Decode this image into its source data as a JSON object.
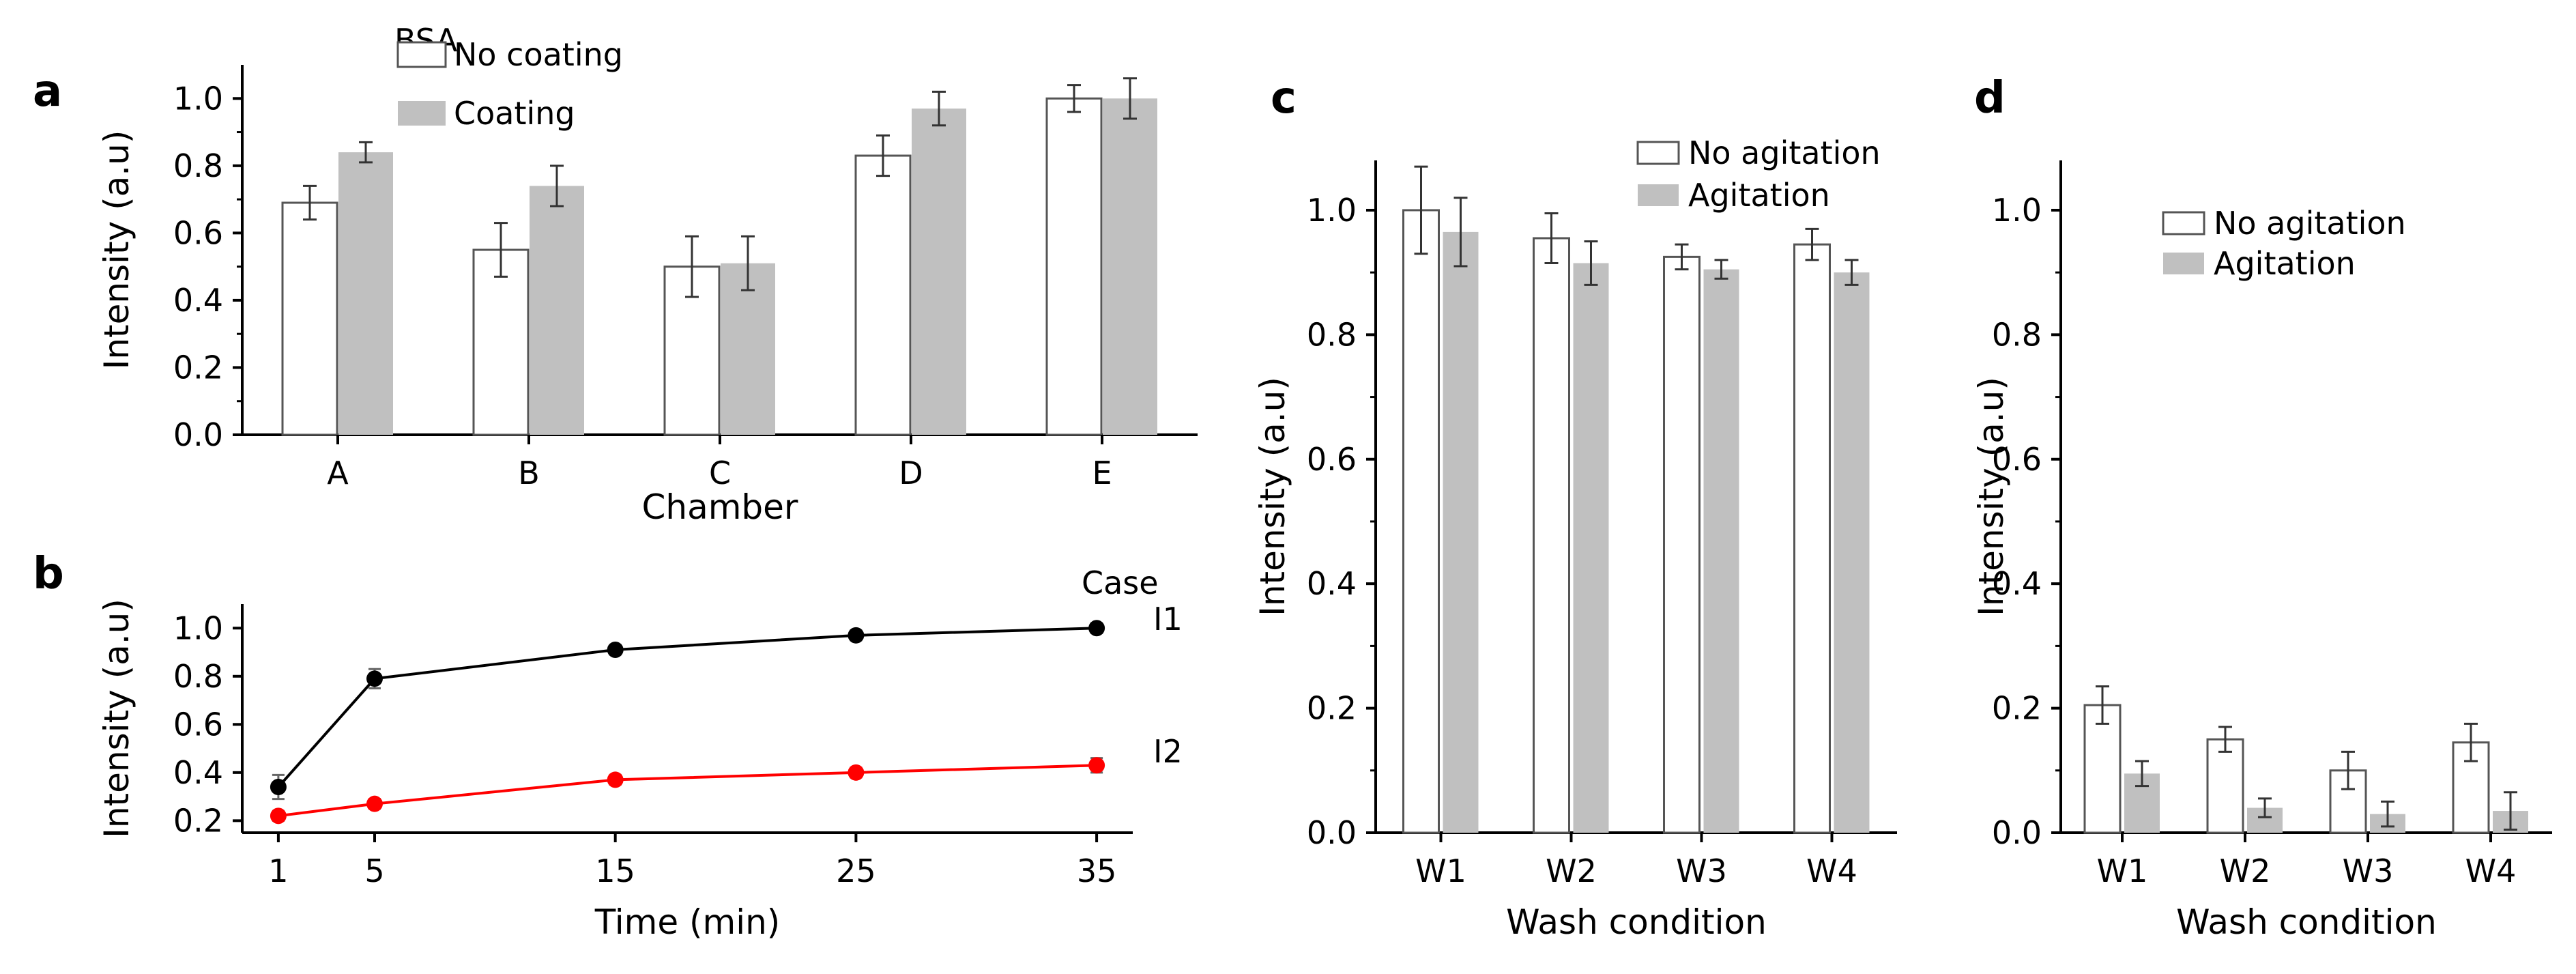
{
  "panel_labels": [
    "a",
    "b",
    "c",
    "d"
  ],
  "chart_data": [
    {
      "id": "a",
      "type": "bar",
      "title": "",
      "xlabel": "Chamber",
      "ylabel": "Intensity (a.u)",
      "ylim": [
        0,
        1.1
      ],
      "yticks": [
        "0.0",
        "0.2",
        "0.4",
        "0.6",
        "0.8",
        "1.0"
      ],
      "categories": [
        "A",
        "B",
        "C",
        "D",
        "E"
      ],
      "legend_title": "BSA",
      "series": [
        {
          "name": "No coating",
          "fill": "#ffffff",
          "values": [
            0.69,
            0.55,
            0.5,
            0.83,
            1.0
          ],
          "errors": [
            0.05,
            0.08,
            0.09,
            0.06,
            0.04
          ]
        },
        {
          "name": "Coating",
          "fill": "#c0c0c0",
          "values": [
            0.84,
            0.74,
            0.51,
            0.97,
            1.0
          ],
          "errors": [
            0.03,
            0.06,
            0.08,
            0.05,
            0.06
          ]
        }
      ]
    },
    {
      "id": "b",
      "type": "line",
      "title": "",
      "xlabel": "Time (min)",
      "ylabel": "Intensity (a.u)",
      "ylim": [
        0.15,
        1.1
      ],
      "yticks": [
        "0.2",
        "0.4",
        "0.6",
        "0.8",
        "1.0"
      ],
      "x": [
        "1",
        "5",
        "15",
        "25",
        "35"
      ],
      "legend_title": "Case",
      "series": [
        {
          "name": "I1",
          "color": "#000000",
          "values": [
            0.34,
            0.79,
            0.91,
            0.97,
            1.0
          ],
          "errors": [
            0.05,
            0.04,
            0.02,
            0.02,
            0.02
          ]
        },
        {
          "name": "I2",
          "color": "#ff0000",
          "values": [
            0.22,
            0.27,
            0.37,
            0.4,
            0.43
          ],
          "errors": [
            0.02,
            0.02,
            0.02,
            0.02,
            0.03
          ]
        }
      ]
    },
    {
      "id": "c",
      "type": "bar",
      "title": "",
      "xlabel": "Wash condition",
      "ylabel": "Intensity (a.u)",
      "ylim": [
        0,
        1.08
      ],
      "yticks": [
        "0.0",
        "0.2",
        "0.4",
        "0.6",
        "0.8",
        "1.0"
      ],
      "categories": [
        "W1",
        "W2",
        "W3",
        "W4"
      ],
      "series": [
        {
          "name": "No agitation",
          "fill": "#ffffff",
          "values": [
            1.0,
            0.955,
            0.925,
            0.945
          ],
          "errors": [
            0.07,
            0.04,
            0.02,
            0.025
          ]
        },
        {
          "name": "Agitation",
          "fill": "#c0c0c0",
          "values": [
            0.965,
            0.915,
            0.905,
            0.9
          ],
          "errors": [
            0.055,
            0.035,
            0.015,
            0.02
          ]
        }
      ]
    },
    {
      "id": "d",
      "type": "bar",
      "title": "",
      "xlabel": "Wash condition",
      "ylabel": "Intensity (a.u)",
      "ylim": [
        0,
        1.08
      ],
      "yticks": [
        "0.0",
        "0.2",
        "0.4",
        "0.6",
        "0.8",
        "1.0"
      ],
      "categories": [
        "W1",
        "W2",
        "W3",
        "W4"
      ],
      "series": [
        {
          "name": "No agitation",
          "fill": "#ffffff",
          "values": [
            0.205,
            0.15,
            0.1,
            0.145
          ],
          "errors": [
            0.03,
            0.02,
            0.03,
            0.03
          ]
        },
        {
          "name": "Agitation",
          "fill": "#c0c0c0",
          "values": [
            0.095,
            0.04,
            0.03,
            0.035
          ],
          "errors": [
            0.02,
            0.015,
            0.02,
            0.03
          ]
        }
      ]
    }
  ]
}
